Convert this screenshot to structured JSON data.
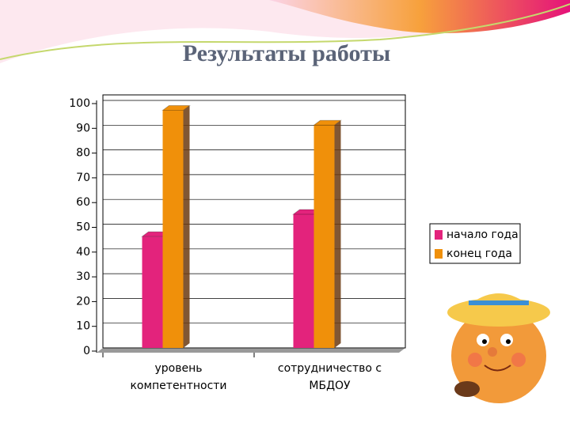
{
  "chart_data": {
    "type": "bar",
    "title": "Результаты работы",
    "categories": [
      "уровень компетентности",
      "сотрудничество с МБДОУ"
    ],
    "series": [
      {
        "name": "начало года",
        "color": "#e3237c",
        "values": [
          45,
          54
        ]
      },
      {
        "name": "конец года",
        "color": "#f0900a",
        "values": [
          96,
          90
        ]
      }
    ],
    "ylim": [
      0,
      100
    ],
    "yticks": [
      0,
      10,
      20,
      30,
      40,
      50,
      60,
      70,
      80,
      90,
      100
    ],
    "grid": true
  }
}
